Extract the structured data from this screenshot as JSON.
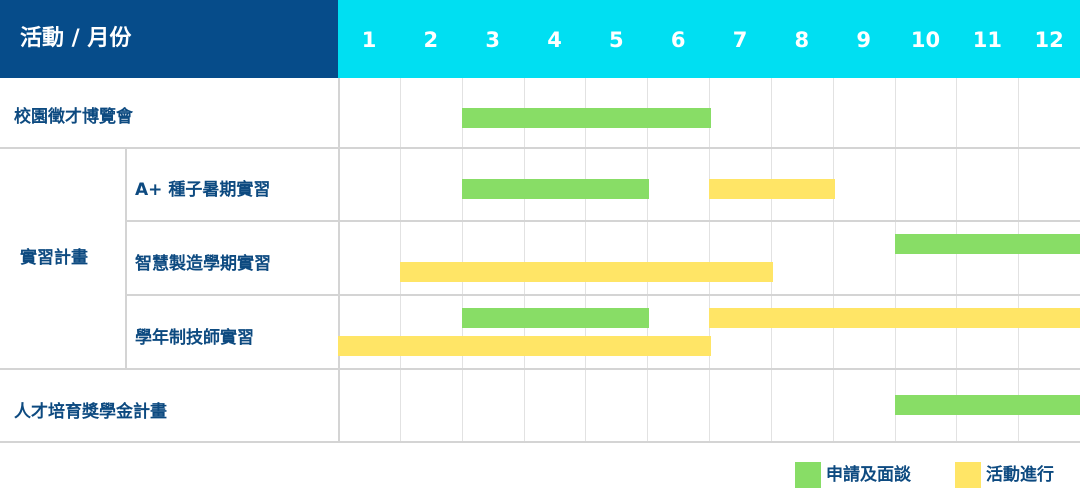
{
  "chart_data": {
    "type": "gantt",
    "header_label": "活動 / 月份",
    "months": [
      "1",
      "2",
      "3",
      "4",
      "5",
      "6",
      "7",
      "8",
      "9",
      "10",
      "11",
      "12"
    ],
    "group_label": "實習計畫",
    "activities": [
      "校園徵才博覽會",
      "A+ 種子暑期實習",
      "智慧製造學期實習",
      "學年制技師實習",
      "人才培育獎學金計畫"
    ],
    "legend": [
      {
        "key": "apply",
        "label": "申請及面談",
        "color": "#88dd66"
      },
      {
        "key": "run",
        "label": "活動進行",
        "color": "#ffe566"
      }
    ],
    "bars": [
      {
        "activity": 0,
        "phase": "apply",
        "start": 3,
        "end": 6
      },
      {
        "activity": 1,
        "phase": "apply",
        "start": 3,
        "end": 5
      },
      {
        "activity": 1,
        "phase": "run",
        "start": 7,
        "end": 8
      },
      {
        "activity": 2,
        "phase": "apply",
        "start": 10,
        "end": 12
      },
      {
        "activity": 2,
        "phase": "run",
        "start": 2,
        "end": 7
      },
      {
        "activity": 3,
        "phase": "apply",
        "start": 3,
        "end": 5
      },
      {
        "activity": 3,
        "phase": "run",
        "start": 7,
        "end": 12
      },
      {
        "activity": 3,
        "phase": "run",
        "start": 1,
        "end": 6
      },
      {
        "activity": 4,
        "phase": "apply",
        "start": 10,
        "end": 12
      }
    ]
  }
}
